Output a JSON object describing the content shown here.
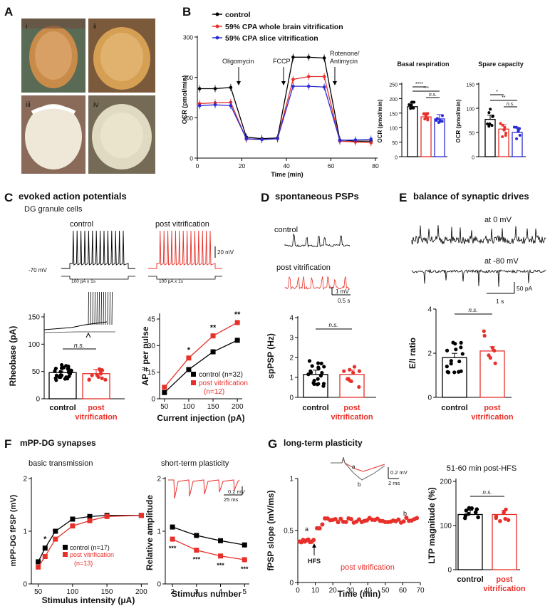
{
  "panels": {
    "A": {
      "letter": "A",
      "subpanels": [
        "i",
        "ii",
        "iii",
        "iv"
      ]
    },
    "B": {
      "letter": "B",
      "legend": [
        "control",
        "59% CPA whole brain vitrification",
        "59% CPA slice vitrification"
      ],
      "annotations": [
        "Oligomycin",
        "FCCP",
        "Rotenone/",
        "Antimycin"
      ],
      "ylabel": "OCR (pmol/min)",
      "xlabel": "Time (min)",
      "yticks": [
        "0",
        "100",
        "200",
        "300"
      ],
      "xticks": [
        "0",
        "20",
        "40",
        "60",
        "80"
      ],
      "basal_title": "Basal respiration",
      "spare_title": "Spare capacity",
      "basal_ylabel": "OCR (pmol/min)",
      "basal_yticks": [
        "0",
        "50",
        "100",
        "150",
        "200",
        "250"
      ],
      "spare_ylabel": "OCR (pmol/min)",
      "spare_yticks": [
        "0",
        "50",
        "100",
        "150"
      ],
      "sig_basal": [
        "****",
        "***",
        "n.s."
      ],
      "sig_spare": [
        "*",
        "**",
        "n.s."
      ]
    },
    "C": {
      "letter": "C",
      "title": "evoked action potentials",
      "subtitle": "DG granule cells",
      "control_label": "control",
      "post_label": "post vitrification",
      "rmp": "-70 mV",
      "stim1": "100 pA x 1s",
      "stim2": "100 pA x 1s",
      "scale": "20 mV",
      "rheo_ylabel": "Rheobase (pA)",
      "rheo_yticks": [
        "0",
        "50",
        "100",
        "150"
      ],
      "rheo_ns": "n.s.",
      "cat_control": "control",
      "cat_post1": "post",
      "cat_post2": "vitrification",
      "ap_ylabel": "AP # per pulse",
      "ap_xlabel": "Current injection (pA)",
      "ap_yticks": [
        "0",
        "15",
        "30",
        "45"
      ],
      "ap_xticks": [
        "50",
        "100",
        "150",
        "200"
      ],
      "leg_control": "control (n=32)",
      "leg_post": "post vitrification",
      "leg_post_n": "(n=12)",
      "stars": [
        "*",
        "**",
        "**"
      ]
    },
    "D": {
      "letter": "D",
      "title": "spontaneous PSPs",
      "control_label": "control",
      "post_label": "post vitrification",
      "scale_v": "1 mV",
      "scale_t": "0.5 s",
      "ylabel": "spPSP (Hz)",
      "yticks": [
        "0",
        "1",
        "2",
        "3",
        "4"
      ],
      "ns": "n.s.",
      "cat_control": "control",
      "cat_post1": "post",
      "cat_post2": "vitrification"
    },
    "E": {
      "letter": "E",
      "title": "balance of synaptic drives",
      "at0": "at 0 mV",
      "atm80": "at -80 mV",
      "scale_i": "50 pA",
      "scale_t": "1 s",
      "ylabel": "E/I ratio",
      "yticks": [
        "0",
        "2",
        "4"
      ],
      "ns": "n.s.",
      "cat_control": "control",
      "cat_post1": "post",
      "cat_post2": "vitrification"
    },
    "F": {
      "letter": "F",
      "title": "mPP-DG synapses",
      "bt_title": "basic transmission",
      "stp_title": "short-term plasticity",
      "bt_ylabel": "mPP-DG fPSP (mV)",
      "bt_xlabel": "Stimulus intensity (μA)",
      "bt_yticks": [
        "0",
        "1",
        "2"
      ],
      "bt_xticks": [
        "50",
        "100",
        "150",
        "200"
      ],
      "bt_leg_control": "control (n=17)",
      "bt_leg_post": "post vitrification",
      "bt_leg_post_n": "(n=13)",
      "bt_star": "*",
      "stp_ylabel": "Relative amplitude",
      "stp_xlabel": "Stimulus number",
      "stp_yticks": [
        "0",
        "1",
        "2"
      ],
      "stp_xticks": [
        "2",
        "3",
        "4",
        "5"
      ],
      "stp_scale_v": "0.2 mV",
      "stp_scale_t": "25 ms",
      "stp_stars": [
        "***",
        "***",
        "***",
        "***"
      ]
    },
    "G": {
      "letter": "G",
      "title": "long-term plasticity",
      "ylabel": "fPSP slope (mV/ms)",
      "xlabel": "Time (min)",
      "yticks": [
        "0",
        "0.5",
        "1"
      ],
      "xticks": [
        "0",
        "10",
        "20",
        "30",
        "40",
        "50",
        "60",
        "70"
      ],
      "hfs": "HFS",
      "mark_a": "a",
      "mark_b": "b",
      "inset_a": "a",
      "inset_b": "b",
      "scale_v": "0.2 mV",
      "scale_t": "2 ms",
      "condition": "post vitrification",
      "ltp_title": "51-60 min post-HFS",
      "ltp_ylabel": "LTP magnitude (%)",
      "ltp_yticks": [
        "0",
        "100",
        "200"
      ],
      "ns": "n.s.",
      "cat_control": "control",
      "cat_post1": "post",
      "cat_post2": "vitrification"
    }
  },
  "colors": {
    "control": "#000000",
    "post": "#e8302a",
    "slice": "#2b2bd6"
  },
  "chart_data": [
    {
      "type": "line",
      "id": "B-ocr",
      "xlabel": "Time (min)",
      "ylabel": "OCR (pmol/min)",
      "xlim": [
        0,
        80
      ],
      "ylim": [
        0,
        300
      ],
      "x": [
        1,
        8,
        15,
        22,
        29,
        36,
        43,
        50,
        57,
        64,
        71,
        78
      ],
      "series": [
        {
          "name": "control",
          "values": [
            172,
            172,
            175,
            52,
            48,
            50,
            250,
            250,
            248,
            45,
            42,
            42
          ]
        },
        {
          "name": "59% CPA whole brain vitrification",
          "values": [
            135,
            137,
            138,
            47,
            46,
            48,
            195,
            202,
            202,
            42,
            40,
            38
          ]
        },
        {
          "name": "59% CPA slice vitrification",
          "values": [
            130,
            132,
            130,
            48,
            46,
            48,
            178,
            178,
            176,
            44,
            45,
            47
          ]
        }
      ]
    },
    {
      "type": "bar",
      "id": "B-basal",
      "title": "Basal respiration",
      "ylabel": "OCR (pmol/min)",
      "ylim": [
        0,
        250
      ],
      "categories": [
        "control",
        "whole brain",
        "slice"
      ],
      "values": [
        172,
        137,
        130
      ]
    },
    {
      "type": "bar",
      "id": "B-spare",
      "title": "Spare capacity",
      "ylabel": "OCR (pmol/min)",
      "ylim": [
        0,
        150
      ],
      "categories": [
        "control",
        "whole brain",
        "slice"
      ],
      "values": [
        77,
        57,
        50
      ]
    },
    {
      "type": "bar",
      "id": "C-rheobase",
      "ylabel": "Rheobase (pA)",
      "ylim": [
        0,
        150
      ],
      "categories": [
        "control",
        "post vitrification"
      ],
      "values": [
        48,
        46
      ]
    },
    {
      "type": "line",
      "id": "C-ap",
      "xlabel": "Current injection (pA)",
      "ylabel": "AP # per pulse",
      "xlim": [
        40,
        210
      ],
      "ylim": [
        0,
        45
      ],
      "x": [
        50,
        100,
        150,
        200
      ],
      "series": [
        {
          "name": "control (n=32)",
          "values": [
            3.5,
            16.5,
            26.5,
            33
          ]
        },
        {
          "name": "post vitrification (n=12)",
          "values": [
            6.5,
            23,
            35.5,
            43
          ]
        }
      ]
    },
    {
      "type": "bar",
      "id": "D-sppsp",
      "ylabel": "spPSP (Hz)",
      "ylim": [
        0,
        4
      ],
      "categories": [
        "control",
        "post vitrification"
      ],
      "values": [
        1.15,
        1.15
      ]
    },
    {
      "type": "bar",
      "id": "E-ei",
      "ylabel": "E/I ratio",
      "ylim": [
        0,
        4
      ],
      "categories": [
        "control",
        "post vitrification"
      ],
      "values": [
        1.8,
        2.1
      ]
    },
    {
      "type": "line",
      "id": "F-bt",
      "xlabel": "Stimulus intensity (μA)",
      "ylabel": "mPP-DG fPSP (mV)",
      "xlim": [
        40,
        210
      ],
      "ylim": [
        0,
        2
      ],
      "x": [
        50,
        60,
        75,
        100,
        125,
        150,
        200
      ],
      "series": [
        {
          "name": "control (n=17)",
          "values": [
            0.42,
            0.68,
            1.0,
            1.23,
            1.28,
            1.3,
            1.3
          ]
        },
        {
          "name": "post vitrification (n=13)",
          "values": [
            0.32,
            0.52,
            0.85,
            1.1,
            1.2,
            1.28,
            1.3
          ]
        }
      ]
    },
    {
      "type": "line",
      "id": "F-stp",
      "xlabel": "Stimulus number",
      "ylabel": "Relative amplitude",
      "xlim": [
        1.7,
        5.2
      ],
      "ylim": [
        0,
        2
      ],
      "x": [
        2,
        3,
        4,
        5
      ],
      "series": [
        {
          "values": [
            1.08,
            0.92,
            0.82,
            0.74
          ]
        },
        {
          "values": [
            0.85,
            0.64,
            0.53,
            0.46
          ]
        }
      ]
    },
    {
      "type": "scatter",
      "id": "G-ltp",
      "xlabel": "Time (min)",
      "ylabel": "fPSP slope (mV/ms)",
      "xlim": [
        0,
        70
      ],
      "ylim": [
        0,
        1
      ],
      "series": [
        {
          "name": "post vitrification",
          "baseline": 0.4,
          "post_hfs": 0.6
        }
      ]
    },
    {
      "type": "bar",
      "id": "G-mag",
      "title": "51-60 min post-HFS",
      "ylabel": "LTP magnitude (%)",
      "ylim": [
        0,
        200
      ],
      "categories": [
        "control",
        "post vitrification"
      ],
      "values": [
        125,
        125
      ]
    }
  ]
}
